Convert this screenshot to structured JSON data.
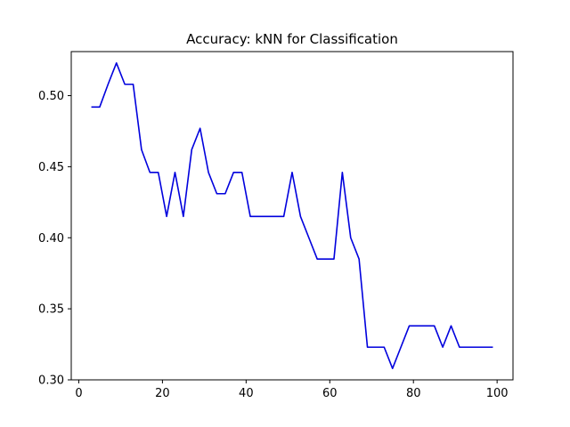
{
  "chart_data": {
    "type": "line",
    "title": "Accuracy: kNN for Classification",
    "xlabel": "",
    "ylabel": "",
    "xlim": [
      -1.8,
      103.8
    ],
    "ylim": [
      0.3,
      0.531
    ],
    "x_ticks": [
      0,
      20,
      40,
      60,
      80,
      100
    ],
    "y_ticks": [
      0.3,
      0.35,
      0.4,
      0.45,
      0.5
    ],
    "x_tick_labels": [
      "0",
      "20",
      "40",
      "60",
      "80",
      "100"
    ],
    "y_tick_labels": [
      "0.30",
      "0.35",
      "0.40",
      "0.45",
      "0.50"
    ],
    "grid": false,
    "legend": "none",
    "series": [
      {
        "color": "#0000dd",
        "x": [
          3,
          5,
          7,
          9,
          11,
          13,
          15,
          17,
          19,
          21,
          23,
          25,
          27,
          29,
          31,
          33,
          35,
          37,
          39,
          41,
          43,
          45,
          47,
          49,
          51,
          53,
          55,
          57,
          59,
          61,
          63,
          65,
          67,
          69,
          71,
          73,
          75,
          77,
          79,
          81,
          83,
          85,
          87,
          89,
          91,
          93,
          95,
          97,
          99
        ],
        "y": [
          0.492,
          0.492,
          0.508,
          0.523,
          0.508,
          0.508,
          0.462,
          0.446,
          0.446,
          0.415,
          0.446,
          0.415,
          0.462,
          0.477,
          0.446,
          0.431,
          0.431,
          0.446,
          0.446,
          0.415,
          0.415,
          0.415,
          0.415,
          0.415,
          0.446,
          0.415,
          0.4,
          0.385,
          0.385,
          0.385,
          0.446,
          0.4,
          0.385,
          0.323,
          0.323,
          0.323,
          0.308,
          0.323,
          0.338,
          0.338,
          0.338,
          0.338,
          0.323,
          0.338,
          0.323,
          0.323,
          0.323,
          0.323,
          0.323
        ]
      }
    ]
  }
}
